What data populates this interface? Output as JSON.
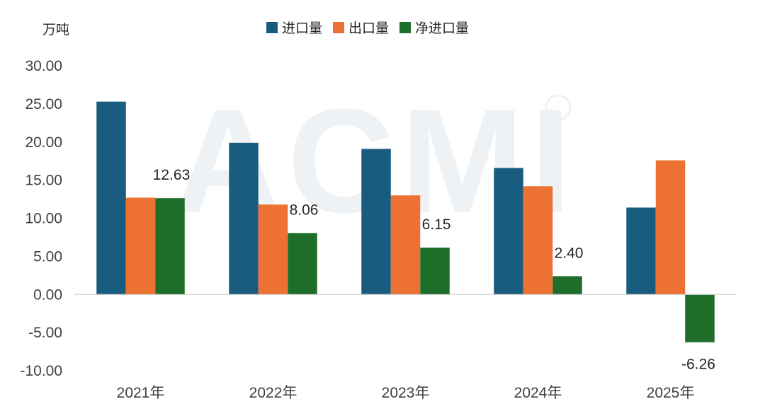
{
  "chart_data": {
    "type": "bar",
    "unit_label": "万吨",
    "categories": [
      "2021年",
      "2022年",
      "2023年",
      "2024年",
      "2025年"
    ],
    "series": [
      {
        "name": "进口量",
        "color": "#1a5c80",
        "values": [
          25.3,
          19.9,
          19.1,
          16.6,
          11.4
        ]
      },
      {
        "name": "出口量",
        "color": "#ec7133",
        "values": [
          12.7,
          11.8,
          13.0,
          14.2,
          17.6
        ]
      },
      {
        "name": "净进口量",
        "color": "#1e6e2a",
        "values": [
          12.63,
          8.06,
          6.15,
          2.4,
          -6.26
        ]
      }
    ],
    "data_labels": [
      "12.63",
      "8.06",
      "6.15",
      "2.40",
      "-6.26"
    ],
    "y_ticks": [
      "30.00",
      "25.00",
      "20.00",
      "15.00",
      "10.00",
      "5.00",
      "0.00",
      "-5.00",
      "-10.00"
    ],
    "ylim": [
      -10,
      30
    ],
    "legend_position": "top-center",
    "grid": false,
    "watermark": "ACMI"
  }
}
